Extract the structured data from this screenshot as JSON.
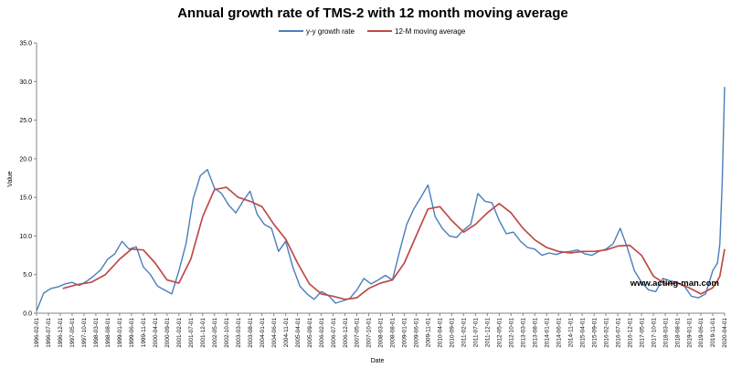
{
  "chart_data": {
    "type": "line",
    "title": "Annual growth rate of TMS-2 with 12 month moving average",
    "xlabel": "Date",
    "ylabel": "Value",
    "ylim": [
      0,
      35
    ],
    "yticks": [
      "0.0",
      "5.0",
      "10.0",
      "15.0",
      "20.0",
      "25.0",
      "30.0",
      "35.0"
    ],
    "xlim": [
      "1996-02-01",
      "2020-04-01"
    ],
    "xticks": [
      "1996-02-01",
      "1996-07-01",
      "1996-12-01",
      "1997-05-01",
      "1997-10-01",
      "1998-03-01",
      "1998-08-01",
      "1999-01-01",
      "1999-06-01",
      "1999-11-01",
      "2000-04-01",
      "2000-09-01",
      "2001-02-01",
      "2001-07-01",
      "2001-12-01",
      "2002-05-01",
      "2002-10-01",
      "2003-03-01",
      "2003-08-01",
      "2004-01-01",
      "2004-06-01",
      "2004-11-01",
      "2005-04-01",
      "2005-09-01",
      "2006-02-01",
      "2006-07-01",
      "2006-12-01",
      "2007-05-01",
      "2007-10-01",
      "2008-03-01",
      "2008-08-01",
      "2009-01-01",
      "2009-06-01",
      "2009-11-01",
      "2010-04-01",
      "2010-09-01",
      "2011-02-01",
      "2011-07-01",
      "2011-12-01",
      "2012-05-01",
      "2012-10-01",
      "2013-03-01",
      "2013-08-01",
      "2014-01-01",
      "2014-06-01",
      "2014-11-01",
      "2015-04-01",
      "2015-09-01",
      "2016-02-01",
      "2016-07-01",
      "2016-12-01",
      "2017-05-01",
      "2017-10-01",
      "2018-03-01",
      "2018-08-01",
      "2019-01-01",
      "2019-06-01",
      "2019-11-01",
      "2020-04-01"
    ],
    "grid": "none",
    "legend_position": "top-center",
    "series": [
      {
        "name": "y-y growth rate",
        "color": "#4a7ebb",
        "points": [
          [
            "1996-02-01",
            0.3
          ],
          [
            "1996-05-01",
            2.6
          ],
          [
            "1996-08-01",
            3.2
          ],
          [
            "1996-11-01",
            3.4
          ],
          [
            "1997-02-01",
            3.8
          ],
          [
            "1997-05-01",
            4.0
          ],
          [
            "1997-08-01",
            3.6
          ],
          [
            "1997-11-01",
            4.1
          ],
          [
            "1998-02-01",
            4.8
          ],
          [
            "1998-05-01",
            5.6
          ],
          [
            "1998-08-01",
            7.0
          ],
          [
            "1998-11-01",
            7.7
          ],
          [
            "1999-02-01",
            9.3
          ],
          [
            "1999-05-01",
            8.3
          ],
          [
            "1999-08-01",
            8.6
          ],
          [
            "1999-11-01",
            6.0
          ],
          [
            "2000-02-01",
            5.0
          ],
          [
            "2000-05-01",
            3.5
          ],
          [
            "2000-08-01",
            3.0
          ],
          [
            "2000-11-01",
            2.5
          ],
          [
            "2001-02-01",
            5.5
          ],
          [
            "2001-05-01",
            9.0
          ],
          [
            "2001-08-01",
            14.8
          ],
          [
            "2001-11-01",
            17.8
          ],
          [
            "2002-02-01",
            18.6
          ],
          [
            "2002-05-01",
            16.2
          ],
          [
            "2002-08-01",
            15.5
          ],
          [
            "2002-11-01",
            14.0
          ],
          [
            "2003-02-01",
            13.0
          ],
          [
            "2003-05-01",
            14.5
          ],
          [
            "2003-08-01",
            15.8
          ],
          [
            "2003-11-01",
            12.8
          ],
          [
            "2004-02-01",
            11.5
          ],
          [
            "2004-05-01",
            11.0
          ],
          [
            "2004-08-01",
            8.0
          ],
          [
            "2004-11-01",
            9.3
          ],
          [
            "2005-02-01",
            6.0
          ],
          [
            "2005-05-01",
            3.5
          ],
          [
            "2005-08-01",
            2.5
          ],
          [
            "2005-11-01",
            1.8
          ],
          [
            "2006-02-01",
            2.8
          ],
          [
            "2006-05-01",
            2.3
          ],
          [
            "2006-08-01",
            1.3
          ],
          [
            "2006-11-01",
            1.6
          ],
          [
            "2007-02-01",
            1.9
          ],
          [
            "2007-05-01",
            3.0
          ],
          [
            "2007-08-01",
            4.5
          ],
          [
            "2007-11-01",
            3.8
          ],
          [
            "2008-02-01",
            4.3
          ],
          [
            "2008-05-01",
            4.9
          ],
          [
            "2008-08-01",
            4.3
          ],
          [
            "2008-11-01",
            8.0
          ],
          [
            "2009-02-01",
            11.5
          ],
          [
            "2009-05-01",
            13.5
          ],
          [
            "2009-08-01",
            15.0
          ],
          [
            "2009-11-01",
            16.6
          ],
          [
            "2010-02-01",
            12.5
          ],
          [
            "2010-05-01",
            11.0
          ],
          [
            "2010-08-01",
            10.0
          ],
          [
            "2010-11-01",
            9.8
          ],
          [
            "2011-02-01",
            10.8
          ],
          [
            "2011-05-01",
            11.5
          ],
          [
            "2011-08-01",
            15.5
          ],
          [
            "2011-11-01",
            14.5
          ],
          [
            "2012-02-01",
            14.3
          ],
          [
            "2012-05-01",
            12.0
          ],
          [
            "2012-08-01",
            10.3
          ],
          [
            "2012-11-01",
            10.5
          ],
          [
            "2013-02-01",
            9.3
          ],
          [
            "2013-05-01",
            8.5
          ],
          [
            "2013-08-01",
            8.3
          ],
          [
            "2013-11-01",
            7.5
          ],
          [
            "2014-02-01",
            7.8
          ],
          [
            "2014-05-01",
            7.6
          ],
          [
            "2014-08-01",
            7.9
          ],
          [
            "2014-11-01",
            8.0
          ],
          [
            "2015-02-01",
            8.2
          ],
          [
            "2015-05-01",
            7.7
          ],
          [
            "2015-08-01",
            7.5
          ],
          [
            "2015-11-01",
            8.0
          ],
          [
            "2016-02-01",
            8.3
          ],
          [
            "2016-05-01",
            9.0
          ],
          [
            "2016-08-01",
            11.0
          ],
          [
            "2016-11-01",
            8.5
          ],
          [
            "2017-02-01",
            5.5
          ],
          [
            "2017-05-01",
            4.0
          ],
          [
            "2017-08-01",
            3.0
          ],
          [
            "2017-11-01",
            2.8
          ],
          [
            "2018-02-01",
            4.5
          ],
          [
            "2018-05-01",
            4.2
          ],
          [
            "2018-08-01",
            4.0
          ],
          [
            "2018-11-01",
            3.5
          ],
          [
            "2019-02-01",
            2.2
          ],
          [
            "2019-05-01",
            2.0
          ],
          [
            "2019-08-01",
            2.5
          ],
          [
            "2019-11-01",
            5.5
          ],
          [
            "2020-01-01",
            6.5
          ],
          [
            "2020-02-01",
            9.0
          ],
          [
            "2020-03-01",
            17.0
          ],
          [
            "2020-04-01",
            29.3
          ]
        ]
      },
      {
        "name": "12-M moving average",
        "color": "#be4b48",
        "points": [
          [
            "1997-01-01",
            3.2
          ],
          [
            "1997-07-01",
            3.7
          ],
          [
            "1998-01-01",
            4.0
          ],
          [
            "1998-07-01",
            5.0
          ],
          [
            "1999-01-01",
            7.0
          ],
          [
            "1999-06-01",
            8.3
          ],
          [
            "1999-11-01",
            8.2
          ],
          [
            "2000-04-01",
            6.5
          ],
          [
            "2000-09-01",
            4.3
          ],
          [
            "2001-02-01",
            3.9
          ],
          [
            "2001-07-01",
            7.0
          ],
          [
            "2001-12-01",
            12.5
          ],
          [
            "2002-05-01",
            16.0
          ],
          [
            "2002-10-01",
            16.3
          ],
          [
            "2003-03-01",
            15.0
          ],
          [
            "2003-08-01",
            14.5
          ],
          [
            "2004-01-01",
            13.8
          ],
          [
            "2004-06-01",
            11.5
          ],
          [
            "2004-11-01",
            9.6
          ],
          [
            "2005-04-01",
            6.5
          ],
          [
            "2005-09-01",
            3.8
          ],
          [
            "2006-02-01",
            2.5
          ],
          [
            "2006-07-01",
            2.2
          ],
          [
            "2006-12-01",
            1.8
          ],
          [
            "2007-05-01",
            2.0
          ],
          [
            "2007-10-01",
            3.2
          ],
          [
            "2008-03-01",
            3.9
          ],
          [
            "2008-08-01",
            4.3
          ],
          [
            "2009-01-01",
            6.5
          ],
          [
            "2009-06-01",
            10.0
          ],
          [
            "2009-11-01",
            13.5
          ],
          [
            "2010-04-01",
            13.8
          ],
          [
            "2010-09-01",
            12.0
          ],
          [
            "2011-02-01",
            10.5
          ],
          [
            "2011-07-01",
            11.5
          ],
          [
            "2011-12-01",
            13.0
          ],
          [
            "2012-05-01",
            14.2
          ],
          [
            "2012-10-01",
            13.0
          ],
          [
            "2013-03-01",
            11.0
          ],
          [
            "2013-08-01",
            9.5
          ],
          [
            "2014-01-01",
            8.5
          ],
          [
            "2014-06-01",
            8.0
          ],
          [
            "2014-11-01",
            7.8
          ],
          [
            "2015-04-01",
            8.0
          ],
          [
            "2015-09-01",
            8.0
          ],
          [
            "2016-02-01",
            8.2
          ],
          [
            "2016-07-01",
            8.7
          ],
          [
            "2016-12-01",
            8.8
          ],
          [
            "2017-05-01",
            7.5
          ],
          [
            "2017-10-01",
            4.8
          ],
          [
            "2018-03-01",
            3.8
          ],
          [
            "2018-08-01",
            3.9
          ],
          [
            "2019-01-01",
            3.3
          ],
          [
            "2019-06-01",
            2.5
          ],
          [
            "2019-11-01",
            3.3
          ],
          [
            "2020-01-01",
            4.2
          ],
          [
            "2020-02-01",
            4.8
          ],
          [
            "2020-04-01",
            8.3
          ]
        ]
      }
    ],
    "annotation": "www.acting-man.com"
  }
}
